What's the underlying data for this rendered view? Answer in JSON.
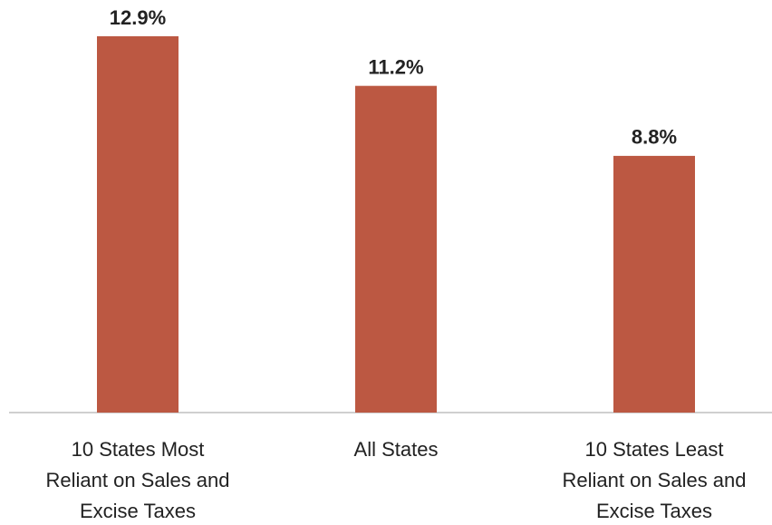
{
  "chart_data": {
    "type": "bar",
    "categories": [
      [
        "10 States Most",
        "Reliant on Sales and",
        "Excise Taxes"
      ],
      [
        "All States"
      ],
      [
        "10 States Least",
        "Reliant on Sales and",
        "Excise Taxes"
      ]
    ],
    "values": [
      12.9,
      11.2,
      8.8
    ],
    "value_labels": [
      "12.9%",
      "11.2%",
      "8.8%"
    ],
    "color": "#bc5842"
  }
}
